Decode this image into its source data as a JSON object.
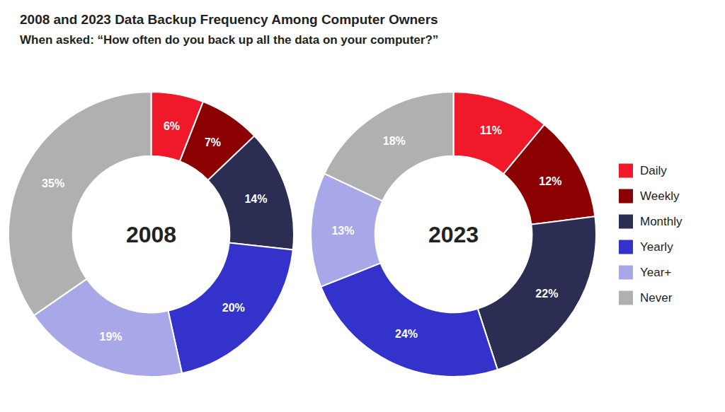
{
  "chart_data": {
    "type": "donut",
    "title": "2008 and 2023 Data Backup Frequency Among Computer Owners",
    "subtitle": "When asked: “How often do you back up all the data on your computer?”",
    "categories": [
      "Daily",
      "Weekly",
      "Monthly",
      "Yearly",
      "Year+",
      "Never"
    ],
    "colors": [
      "#f0192a",
      "#8b0000",
      "#2b2d52",
      "#3333cc",
      "#a8a8e8",
      "#b0b0b0"
    ],
    "series": [
      {
        "name": "2008",
        "values": [
          6,
          7,
          14,
          20,
          19,
          35
        ],
        "value_labels": [
          "6%",
          "7%",
          "14%",
          "20%",
          "19%",
          "35%"
        ]
      },
      {
        "name": "2023",
        "values": [
          11,
          12,
          22,
          24,
          13,
          18
        ],
        "value_labels": [
          "11%",
          "12%",
          "22%",
          "24%",
          "13%",
          "18%"
        ]
      }
    ],
    "data_labels": true,
    "legend": "right"
  }
}
